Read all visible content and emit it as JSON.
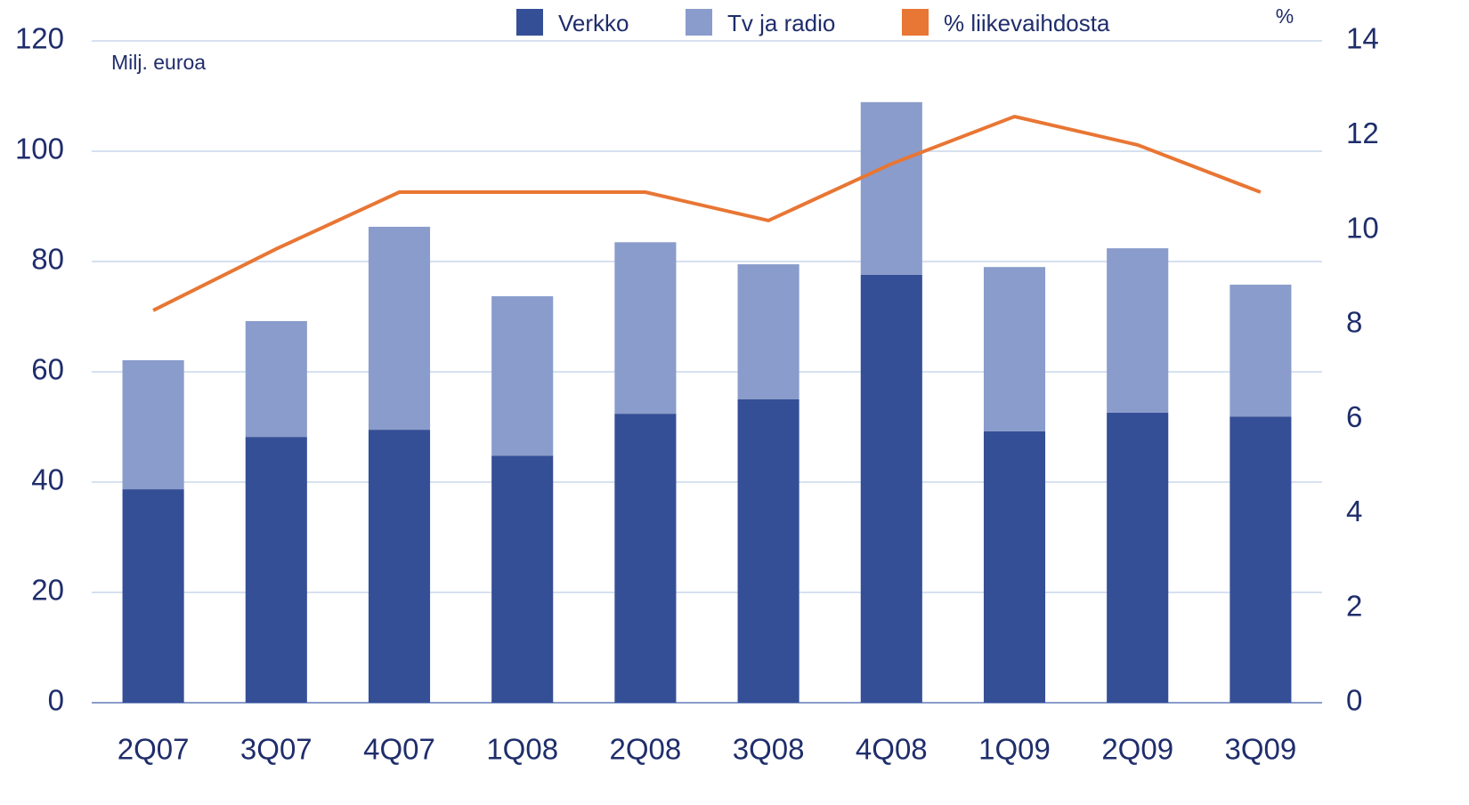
{
  "chart_data": {
    "type": "bar",
    "stacked": true,
    "y_label": "Milj. euroa",
    "y2_label": "%",
    "categories": [
      "2Q07",
      "3Q07",
      "4Q07",
      "1Q08",
      "2Q08",
      "3Q08",
      "4Q08",
      "1Q09",
      "2Q09",
      "3Q09"
    ],
    "series": [
      {
        "name": "Verkko",
        "color": "#354f96",
        "type": "bar",
        "values": [
          38.7,
          48.2,
          49.5,
          44.8,
          52.4,
          55.0,
          77.6,
          49.2,
          52.6,
          51.9
        ]
      },
      {
        "name": "Tv ja radio",
        "color": "#8a9ccb",
        "type": "bar",
        "values": [
          23.4,
          21.0,
          36.8,
          28.9,
          31.1,
          24.5,
          31.3,
          29.8,
          29.8,
          23.9
        ]
      },
      {
        "name": "% liikevaihdosta",
        "color": "#e87634",
        "type": "line",
        "axis": "y2",
        "values": [
          8.3,
          9.6,
          10.8,
          10.8,
          10.8,
          10.2,
          11.4,
          12.4,
          11.8,
          10.8
        ]
      }
    ],
    "ylim": [
      0,
      120
    ],
    "yticks": [
      0,
      20,
      40,
      60,
      80,
      100,
      120
    ],
    "y2lim": [
      0,
      14
    ],
    "y2ticks": [
      0,
      2,
      4,
      6,
      8,
      10,
      12,
      14
    ],
    "grid": true,
    "legend": "top"
  }
}
